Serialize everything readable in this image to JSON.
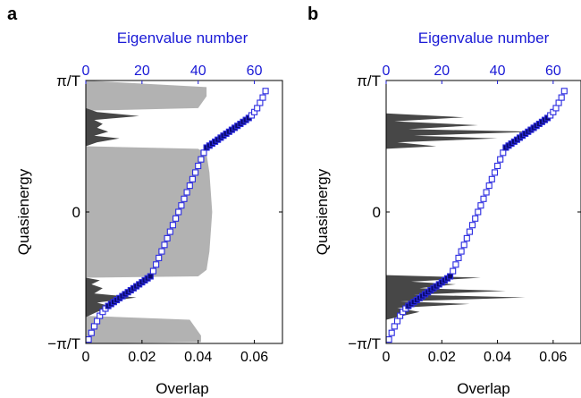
{
  "chart_data": [
    {
      "panel_label": "a",
      "type": "area",
      "top_axis": {
        "label": "Eigenvalue number",
        "ticks": [
          "0",
          "20",
          "40",
          "60"
        ],
        "range": [
          0,
          70
        ]
      },
      "bottom_axis": {
        "label": "Overlap",
        "ticks": [
          "0",
          "0.02",
          "0.04",
          "0.06"
        ],
        "range": [
          0,
          0.07
        ]
      },
      "y_axis": {
        "label": "Quasienergy",
        "ticks": [
          "π/T",
          "0",
          "−π/T"
        ],
        "range": [
          -1,
          1
        ]
      },
      "overlap_light": [
        [
          -1.0,
          0.0
        ],
        [
          -0.99,
          0.041
        ],
        [
          -0.94,
          0.041
        ],
        [
          -0.91,
          0.04
        ],
        [
          -0.82,
          0.037
        ],
        [
          -0.79,
          0.0
        ],
        [
          -0.5,
          0.0
        ],
        [
          -0.49,
          0.04
        ],
        [
          -0.44,
          0.043
        ],
        [
          -0.3,
          0.044
        ],
        [
          0.0,
          0.045
        ],
        [
          0.3,
          0.044
        ],
        [
          0.44,
          0.043
        ],
        [
          0.48,
          0.04
        ],
        [
          0.5,
          0.0
        ],
        [
          0.77,
          0.0
        ],
        [
          0.79,
          0.04
        ],
        [
          0.88,
          0.043
        ],
        [
          0.95,
          0.043
        ],
        [
          1.0,
          0.0
        ]
      ],
      "overlap_dark": [
        [
          -0.8,
          0.0
        ],
        [
          -0.76,
          0.004
        ],
        [
          -0.72,
          0.009
        ],
        [
          -0.69,
          0.004
        ],
        [
          -0.65,
          0.018
        ],
        [
          -0.62,
          0.003
        ],
        [
          -0.58,
          0.006
        ],
        [
          -0.55,
          0.002
        ],
        [
          -0.52,
          0.005
        ],
        [
          -0.5,
          0.0
        ],
        [
          0.5,
          0.0
        ],
        [
          0.53,
          0.004
        ],
        [
          0.56,
          0.012
        ],
        [
          0.58,
          0.003
        ],
        [
          0.61,
          0.008
        ],
        [
          0.64,
          0.004
        ],
        [
          0.67,
          0.006
        ],
        [
          0.7,
          0.003
        ],
        [
          0.73,
          0.019
        ],
        [
          0.76,
          0.004
        ],
        [
          0.79,
          0.0
        ]
      ],
      "eigenvalue_series": {
        "x": [
          1,
          2,
          3,
          4,
          5,
          6,
          7,
          8,
          9,
          10,
          11,
          12,
          13,
          14,
          15,
          16,
          17,
          18,
          19,
          20,
          21,
          22,
          23,
          24,
          25,
          26,
          27,
          28,
          29,
          30,
          31,
          32,
          33,
          34,
          35,
          36,
          37,
          38,
          39,
          40,
          41,
          42,
          43,
          44,
          45,
          46,
          47,
          48,
          49,
          50,
          51,
          52,
          53,
          54,
          55,
          56,
          57,
          58,
          59,
          60,
          61,
          62,
          63,
          64
        ],
        "y": [
          -0.97,
          -0.92,
          -0.87,
          -0.83,
          -0.79,
          -0.76,
          -0.735,
          -0.715,
          -0.7,
          -0.685,
          -0.67,
          -0.655,
          -0.64,
          -0.625,
          -0.61,
          -0.595,
          -0.58,
          -0.565,
          -0.55,
          -0.535,
          -0.52,
          -0.505,
          -0.49,
          -0.45,
          -0.4,
          -0.35,
          -0.3,
          -0.25,
          -0.2,
          -0.15,
          -0.1,
          -0.05,
          0.0,
          0.05,
          0.1,
          0.15,
          0.2,
          0.25,
          0.3,
          0.35,
          0.4,
          0.45,
          0.49,
          0.505,
          0.52,
          0.535,
          0.55,
          0.565,
          0.58,
          0.595,
          0.61,
          0.625,
          0.64,
          0.655,
          0.67,
          0.685,
          0.7,
          0.715,
          0.735,
          0.76,
          0.79,
          0.83,
          0.87,
          0.92
        ],
        "filled_ranges": [
          [
            -0.72,
            -0.49
          ],
          [
            0.49,
            0.72
          ]
        ]
      }
    },
    {
      "panel_label": "b",
      "type": "area",
      "top_axis": {
        "label": "Eigenvalue number",
        "ticks": [
          "0",
          "20",
          "40",
          "60"
        ],
        "range": [
          0,
          70
        ]
      },
      "bottom_axis": {
        "label": "Overlap",
        "ticks": [
          "0",
          "0.02",
          "0.04",
          "0.06"
        ],
        "range": [
          0,
          0.07
        ]
      },
      "y_axis": {
        "label": "Quasienergy",
        "ticks": [
          "π/T",
          "0",
          "−π/T"
        ],
        "range": [
          -1,
          1
        ]
      },
      "overlap_light": [],
      "overlap_dark": [
        [
          -0.82,
          0.0
        ],
        [
          -0.79,
          0.006
        ],
        [
          -0.76,
          0.012
        ],
        [
          -0.73,
          0.004
        ],
        [
          -0.7,
          0.03
        ],
        [
          -0.68,
          0.005
        ],
        [
          -0.65,
          0.05
        ],
        [
          -0.63,
          0.01
        ],
        [
          -0.6,
          0.043
        ],
        [
          -0.58,
          0.012
        ],
        [
          -0.55,
          0.025
        ],
        [
          -0.53,
          0.009
        ],
        [
          -0.5,
          0.034
        ],
        [
          -0.48,
          0.0
        ],
        [
          0.48,
          0.0
        ],
        [
          0.5,
          0.018
        ],
        [
          0.53,
          0.004
        ],
        [
          0.56,
          0.04
        ],
        [
          0.58,
          0.01
        ],
        [
          0.61,
          0.054
        ],
        [
          0.63,
          0.008
        ],
        [
          0.66,
          0.033
        ],
        [
          0.69,
          0.003
        ],
        [
          0.72,
          0.028
        ],
        [
          0.75,
          0.0
        ]
      ],
      "eigenvalue_series": {
        "x": [
          1,
          2,
          3,
          4,
          5,
          6,
          7,
          8,
          9,
          10,
          11,
          12,
          13,
          14,
          15,
          16,
          17,
          18,
          19,
          20,
          21,
          22,
          23,
          24,
          25,
          26,
          27,
          28,
          29,
          30,
          31,
          32,
          33,
          34,
          35,
          36,
          37,
          38,
          39,
          40,
          41,
          42,
          43,
          44,
          45,
          46,
          47,
          48,
          49,
          50,
          51,
          52,
          53,
          54,
          55,
          56,
          57,
          58,
          59,
          60,
          61,
          62,
          63,
          64
        ],
        "y": [
          -0.97,
          -0.92,
          -0.87,
          -0.83,
          -0.79,
          -0.76,
          -0.735,
          -0.715,
          -0.7,
          -0.685,
          -0.67,
          -0.655,
          -0.64,
          -0.625,
          -0.61,
          -0.595,
          -0.58,
          -0.565,
          -0.55,
          -0.535,
          -0.52,
          -0.505,
          -0.49,
          -0.45,
          -0.4,
          -0.35,
          -0.3,
          -0.25,
          -0.2,
          -0.15,
          -0.1,
          -0.05,
          0.0,
          0.05,
          0.1,
          0.15,
          0.2,
          0.25,
          0.3,
          0.35,
          0.4,
          0.45,
          0.49,
          0.505,
          0.52,
          0.535,
          0.55,
          0.565,
          0.58,
          0.595,
          0.61,
          0.625,
          0.64,
          0.655,
          0.67,
          0.685,
          0.7,
          0.715,
          0.735,
          0.76,
          0.79,
          0.83,
          0.87,
          0.92
        ],
        "filled_ranges": [
          [
            -0.72,
            -0.49
          ],
          [
            0.49,
            0.72
          ]
        ]
      }
    }
  ],
  "colors": {
    "light_fill": "#b2b2b2",
    "dark_fill": "#474747",
    "marker_edge": "#2a2ae0",
    "marker_fill": "#0a0a6a",
    "top_axis": "#1a1ad6"
  }
}
